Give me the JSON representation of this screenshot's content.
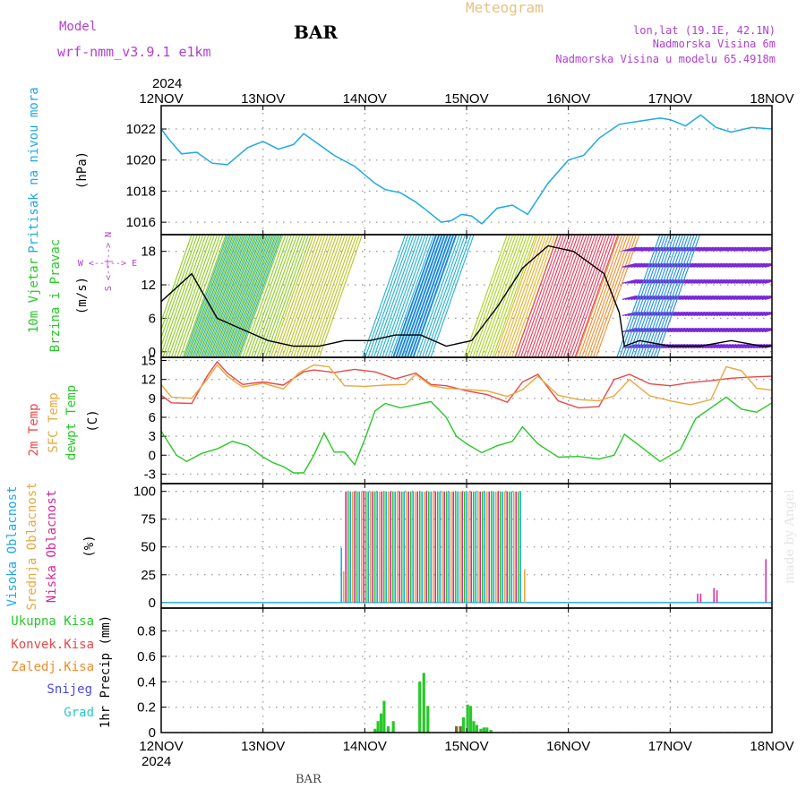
{
  "header": {
    "model_label": "Model",
    "model_name": "wrf-nmm_v3.9.1 e1km",
    "station": "BAR",
    "product": "Meteogram",
    "lonlat": "lon,lat (19.1E, 42.1N)",
    "elevation": "Nadmorska Visina 6m",
    "model_elevation": "Nadmorska Visina u modelu 65.4918m",
    "year_top": "2024",
    "year_bottom": "2024",
    "footer_station": "BAR",
    "watermark": "made by Angel"
  },
  "colors": {
    "pressure": "#1ea8e6",
    "temp2m": "#e84848",
    "sfc": "#e8a840",
    "dewpt": "#28c828",
    "precip": "#28c828",
    "precip_dark": "#7a6a2a",
    "high_cloud": "#1ea8e6",
    "mid_cloud": "#e8a840",
    "low_cloud": "#d42a9a",
    "purple_label": "#b040d0",
    "grid": "#9a9a9a"
  },
  "x_dates": [
    "12NOV",
    "13NOV",
    "14NOV",
    "15NOV",
    "16NOV",
    "17NOV",
    "18NOV"
  ],
  "chart_data": [
    {
      "type": "line",
      "id": "pressure",
      "ylabel_main": "Pritisak na nivou mora",
      "unit": "(hPa)",
      "ylim": [
        1015.2,
        1023.5
      ],
      "yticks": [
        1016,
        1018,
        1020,
        1022
      ],
      "x_days": [
        0,
        0.08,
        0.2,
        0.35,
        0.5,
        0.65,
        0.85,
        1.0,
        1.15,
        1.3,
        1.4,
        1.55,
        1.7,
        1.9,
        2.1,
        2.2,
        2.35,
        2.5,
        2.6,
        2.75,
        2.85,
        2.95,
        3.05,
        3.15,
        3.3,
        3.45,
        3.6,
        3.8,
        4.0,
        4.15,
        4.3,
        4.5,
        4.7,
        4.9,
        5.0,
        5.15,
        5.3,
        5.45,
        5.6,
        5.8,
        6.0
      ],
      "values": [
        1022.0,
        1021.3,
        1020.4,
        1020.5,
        1019.8,
        1019.7,
        1020.8,
        1021.2,
        1020.7,
        1021.0,
        1021.7,
        1021.0,
        1020.3,
        1019.6,
        1018.5,
        1018.1,
        1017.9,
        1017.3,
        1016.8,
        1016.0,
        1016.1,
        1016.5,
        1016.4,
        1015.9,
        1016.9,
        1017.1,
        1016.5,
        1018.5,
        1020.0,
        1020.3,
        1021.4,
        1022.3,
        1022.5,
        1022.7,
        1022.6,
        1022.2,
        1022.9,
        1022.1,
        1021.8,
        1022.1,
        1022.0
      ]
    },
    {
      "type": "line",
      "id": "wind",
      "ylabel_main": "10m Vjetar",
      "ylabel_sub": "Brzina i Pravac",
      "unit": "(m/s)",
      "compass": "W <--|--> E",
      "compass_v": "S <--|--> N",
      "ylim": [
        -1,
        21
      ],
      "yticks": [
        0,
        6,
        12,
        18
      ],
      "x_days": [
        0,
        0.3,
        0.55,
        0.8,
        1.05,
        1.3,
        1.55,
        1.8,
        2.05,
        2.3,
        2.55,
        2.8,
        3.05,
        3.3,
        3.55,
        3.8,
        4.05,
        4.2,
        4.35,
        4.5,
        4.55,
        4.7,
        5.0,
        5.3,
        5.6,
        5.9,
        6.0
      ],
      "speed": [
        9,
        14,
        6,
        4,
        2,
        1,
        1,
        2,
        2,
        3,
        3,
        1,
        2,
        8,
        15,
        19,
        18,
        16,
        14,
        7,
        1,
        2,
        1,
        1,
        2,
        1,
        1
      ],
      "wind_zones": [
        {
          "from": 0.0,
          "to": 1.2,
          "color": "#8ccc1e"
        },
        {
          "from": 0.35,
          "to": 0.9,
          "color": "#20b4c0"
        },
        {
          "from": 1.2,
          "to": 1.7,
          "color": "#b8c41e"
        },
        {
          "from": 2.1,
          "to": 2.8,
          "color": "#20b0d0"
        },
        {
          "from": 2.4,
          "to": 2.6,
          "color": "#1e6ee0"
        },
        {
          "from": 3.1,
          "to": 3.4,
          "color": "#a8d41e"
        },
        {
          "from": 3.4,
          "to": 3.6,
          "color": "#e8b020"
        },
        {
          "from": 3.6,
          "to": 4.2,
          "color": "#e83a5a"
        },
        {
          "from": 4.2,
          "to": 4.4,
          "color": "#f08c2a"
        },
        {
          "from": 4.6,
          "to": 6.0,
          "color": "#7a28d8"
        },
        {
          "from": 4.6,
          "to": 5.0,
          "color": "#1e90e0"
        }
      ]
    },
    {
      "type": "line",
      "id": "temperature",
      "ylabel_t2": "2m Temp",
      "ylabel_sfc": "SFC Temp",
      "ylabel_dew": "dewpt Temp",
      "unit": "(C)",
      "ylim": [
        -4.5,
        15.5
      ],
      "yticks": [
        -3,
        0,
        3,
        6,
        9,
        12,
        15
      ],
      "series": [
        {
          "name": "2m Temp",
          "x_days": [
            0,
            0.1,
            0.3,
            0.45,
            0.55,
            0.65,
            0.8,
            1.0,
            1.2,
            1.4,
            1.5,
            1.7,
            1.9,
            2.1,
            2.3,
            2.5,
            2.65,
            2.8,
            3.0,
            3.2,
            3.4,
            3.55,
            3.7,
            3.9,
            4.1,
            4.3,
            4.45,
            4.6,
            4.8,
            5.0,
            5.2,
            5.4,
            5.6,
            5.8,
            6.0
          ],
          "values": [
            9.5,
            8.3,
            8.2,
            12.5,
            14.8,
            13.0,
            11.2,
            11.6,
            11.1,
            13.2,
            13.5,
            13.1,
            13.6,
            13.2,
            12.1,
            13.0,
            11.2,
            11.0,
            10.2,
            9.6,
            8.4,
            11.6,
            12.8,
            8.6,
            7.5,
            7.7,
            12.0,
            12.8,
            11.3,
            11.0,
            11.5,
            11.8,
            12.2,
            12.4,
            12.5
          ]
        },
        {
          "name": "SFC Temp",
          "x_days": [
            0,
            0.1,
            0.3,
            0.45,
            0.55,
            0.65,
            0.8,
            1.0,
            1.2,
            1.35,
            1.5,
            1.65,
            1.8,
            2.0,
            2.2,
            2.4,
            2.5,
            2.65,
            2.8,
            3.0,
            3.2,
            3.4,
            3.55,
            3.7,
            3.9,
            4.1,
            4.3,
            4.45,
            4.6,
            4.8,
            5.0,
            5.2,
            5.4,
            5.55,
            5.7,
            5.85,
            6.0
          ],
          "values": [
            11.2,
            9.2,
            9.0,
            12.0,
            14.3,
            12.5,
            10.8,
            11.4,
            10.5,
            13.0,
            14.3,
            14.0,
            11.0,
            10.9,
            11.1,
            11.2,
            12.8,
            11.0,
            10.6,
            10.4,
            10.2,
            9.3,
            10.4,
            12.5,
            9.5,
            8.8,
            8.6,
            9.4,
            12.0,
            9.4,
            8.6,
            8.0,
            8.8,
            14.0,
            13.4,
            10.6,
            10.3
          ]
        },
        {
          "name": "dewpt Temp",
          "x_days": [
            0,
            0.15,
            0.25,
            0.4,
            0.55,
            0.7,
            0.85,
            1.0,
            1.1,
            1.2,
            1.3,
            1.4,
            1.5,
            1.6,
            1.7,
            1.8,
            1.9,
            2.0,
            2.1,
            2.2,
            2.35,
            2.5,
            2.65,
            2.8,
            2.9,
            3.0,
            3.15,
            3.3,
            3.45,
            3.55,
            3.7,
            3.9,
            4.1,
            4.3,
            4.45,
            4.55,
            4.7,
            4.9,
            5.1,
            5.25,
            5.4,
            5.55,
            5.7,
            5.85,
            6.0
          ],
          "values": [
            3.8,
            0.0,
            -1.0,
            0.3,
            1.0,
            2.2,
            1.5,
            -0.3,
            -1.2,
            -1.8,
            -2.8,
            -2.8,
            0.0,
            3.5,
            0.5,
            0.5,
            -1.5,
            2.5,
            7.0,
            8.2,
            7.5,
            8.0,
            8.5,
            6.0,
            3.0,
            1.8,
            0.4,
            1.5,
            2.2,
            4.5,
            1.8,
            -0.3,
            -0.2,
            -0.6,
            0.0,
            3.3,
            1.5,
            -1.0,
            0.9,
            5.8,
            7.5,
            9.2,
            7.3,
            6.8,
            8.3
          ]
        }
      ]
    },
    {
      "type": "bar",
      "id": "clouds",
      "ylabel_high": "Visoka Oblacnost",
      "ylabel_mid": "Srednja Oblacnost",
      "ylabel_low": "Niska Oblacnost",
      "unit": "(%)",
      "ylim": [
        -5,
        107
      ],
      "yticks": [
        0,
        25,
        50,
        75,
        100
      ],
      "overcast_from": 1.77,
      "overcast_to": 3.55,
      "low_bars": [
        {
          "x": 5.27,
          "v": 8
        },
        {
          "x": 5.3,
          "v": 8
        },
        {
          "x": 5.43,
          "v": 13
        },
        {
          "x": 5.46,
          "v": 11
        },
        {
          "x": 5.94,
          "v": 39
        }
      ]
    },
    {
      "type": "bar",
      "id": "precip",
      "ylabel_main": "1hr Precip (mm)",
      "legend": [
        "Ukupna Kisa",
        "Konvek.Kisa",
        "Zaledj.Kisa",
        "Snijeg",
        "Grad"
      ],
      "legend_colors": [
        "#28c828",
        "#e84848",
        "#f08c2a",
        "#4848e8",
        "#28c8c8"
      ],
      "ylim": [
        0,
        0.98
      ],
      "yticks": [
        0,
        0.2,
        0.4,
        0.6,
        0.8
      ],
      "bars": [
        {
          "x": 2.1,
          "v": 0.03
        },
        {
          "x": 2.13,
          "v": 0.09
        },
        {
          "x": 2.16,
          "v": 0.15
        },
        {
          "x": 2.19,
          "v": 0.25
        },
        {
          "x": 2.23,
          "v": 0.05
        },
        {
          "x": 2.28,
          "v": 0.09
        },
        {
          "x": 2.54,
          "v": 0.4
        },
        {
          "x": 2.58,
          "v": 0.47
        },
        {
          "x": 2.62,
          "v": 0.21
        },
        {
          "x": 2.9,
          "v": 0.05
        },
        {
          "x": 2.94,
          "v": 0.05
        },
        {
          "x": 2.97,
          "v": 0.12
        },
        {
          "x": 3.01,
          "v": 0.22
        },
        {
          "x": 3.04,
          "v": 0.21
        },
        {
          "x": 3.07,
          "v": 0.09
        },
        {
          "x": 3.1,
          "v": 0.06
        },
        {
          "x": 3.14,
          "v": 0.03
        },
        {
          "x": 3.17,
          "v": 0.04
        },
        {
          "x": 3.2,
          "v": 0.04
        },
        {
          "x": 3.24,
          "v": 0.02
        }
      ]
    }
  ]
}
